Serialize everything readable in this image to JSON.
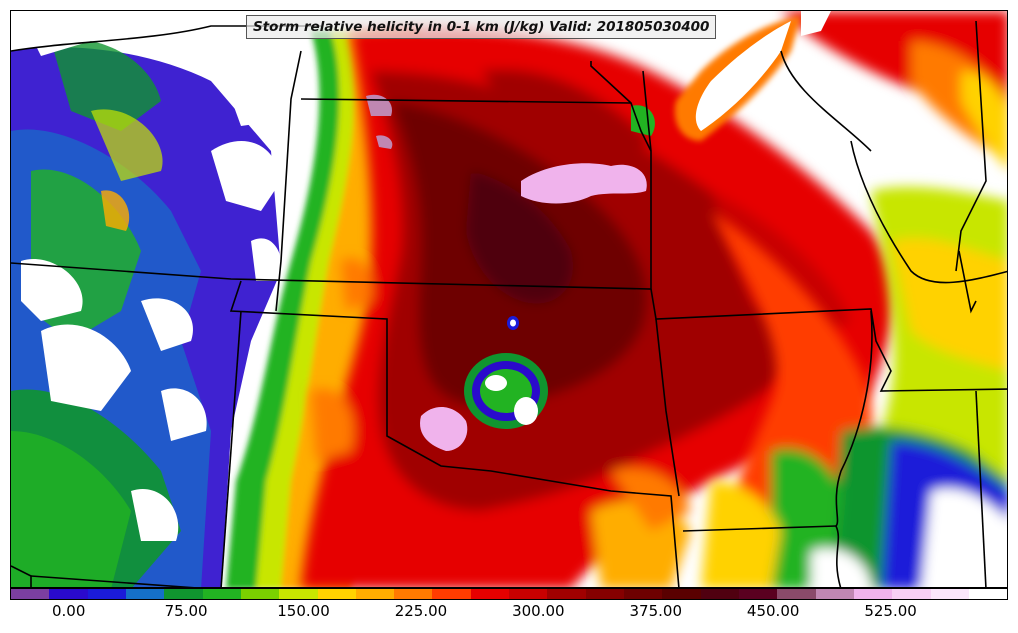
{
  "title": "Storm relative helicity in 0-1 km (J/kg) Valid: 201805030400",
  "colorbar": {
    "min": -37.5,
    "max": 600,
    "colors": [
      "#7b3fa0",
      "#2a0acc",
      "#1b1bd9",
      "#1570c8",
      "#10952f",
      "#22b322",
      "#7bd000",
      "#c8e600",
      "#ffd200",
      "#ffad00",
      "#ff7a00",
      "#ff3c00",
      "#e60000",
      "#c80000",
      "#a00000",
      "#850000",
      "#6e0000",
      "#5a0000",
      "#500010",
      "#5a0020",
      "#8a4a6a",
      "#c087b2",
      "#f0b3ec",
      "#f7d0f4",
      "#fbe6fb",
      "#ffffff"
    ],
    "tick_values": [
      0,
      75,
      150,
      225,
      300,
      375,
      450,
      525
    ],
    "tick_labels": [
      "0.00",
      "75.00",
      "150.00",
      "225.00",
      "300.00",
      "375.00",
      "450.00",
      "525.00"
    ]
  }
}
